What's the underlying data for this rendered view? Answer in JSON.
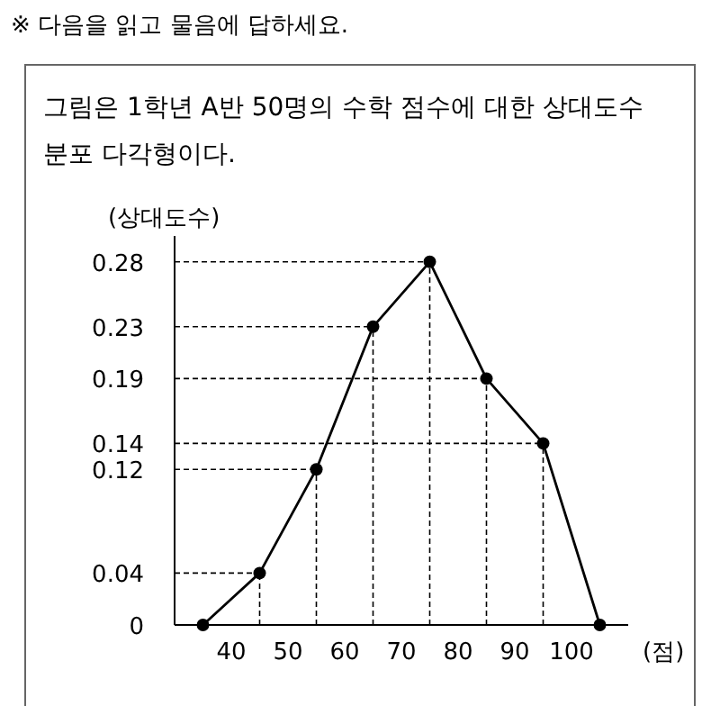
{
  "chart_data": {
    "type": "line",
    "title": "※ 다음을 읽고 물음에 답하세요.",
    "subtitle": "그림은 1학년 A반 50명의 수학 점수에 대한 상대도수 분포 다각형이다.",
    "xlabel": "(점)",
    "ylabel": "(상대도수)",
    "x": [
      35,
      45,
      55,
      65,
      75,
      85,
      95,
      105
    ],
    "series": [
      {
        "color": "#000000",
        "values": [
          0,
          0.04,
          0.12,
          0.23,
          0.28,
          0.19,
          0.14,
          0
        ]
      }
    ],
    "xlim": [
      30,
      110
    ],
    "xticks": [
      40,
      50,
      60,
      70,
      80,
      90,
      100
    ],
    "ylim": [
      0,
      0.3
    ],
    "yticks": [
      0,
      0.04,
      0.12,
      0.14,
      0.19,
      0.23,
      0.28
    ],
    "marker": "circle",
    "line_style": "solid",
    "grid": false,
    "ref_lines": [
      {
        "axis": "y",
        "value": 0.04,
        "line_style": "dashed"
      },
      {
        "axis": "y",
        "value": 0.12,
        "line_style": "dashed"
      },
      {
        "axis": "y",
        "value": 0.14,
        "line_style": "dashed"
      },
      {
        "axis": "y",
        "value": 0.19,
        "line_style": "dashed"
      },
      {
        "axis": "y",
        "value": 0.23,
        "line_style": "dashed"
      },
      {
        "axis": "y",
        "value": 0.28,
        "line_style": "dashed"
      },
      {
        "axis": "x",
        "value": 45,
        "line_style": "dashed"
      },
      {
        "axis": "x",
        "value": 55,
        "line_style": "dashed"
      },
      {
        "axis": "x",
        "value": 65,
        "line_style": "dashed"
      },
      {
        "axis": "x",
        "value": 75,
        "line_style": "dashed"
      },
      {
        "axis": "x",
        "value": 85,
        "line_style": "dashed"
      },
      {
        "axis": "x",
        "value": 95,
        "line_style": "dashed"
      }
    ]
  }
}
